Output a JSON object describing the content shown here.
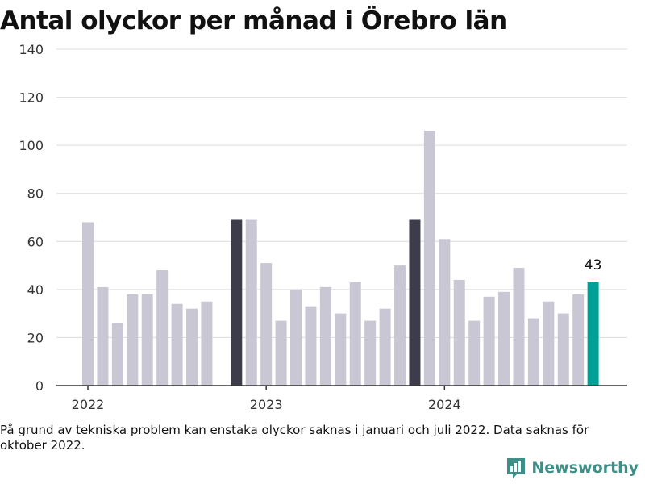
{
  "chart_data": {
    "type": "bar",
    "title": "Antal olyckor per månad i Örebro län",
    "xlabel": "",
    "ylabel": "",
    "ylim": [
      0,
      140
    ],
    "yticks": [
      0,
      20,
      40,
      60,
      80,
      100,
      120,
      140
    ],
    "year_labels": [
      {
        "label": "2022",
        "month_index": 0
      },
      {
        "label": "2023",
        "month_index": 12
      },
      {
        "label": "2024",
        "month_index": 24
      }
    ],
    "months": [
      "2022-01",
      "2022-02",
      "2022-03",
      "2022-04",
      "2022-05",
      "2022-06",
      "2022-07",
      "2022-08",
      "2022-09",
      "2022-10",
      "2022-11",
      "2022-12",
      "2023-01",
      "2023-02",
      "2023-03",
      "2023-04",
      "2023-05",
      "2023-06",
      "2023-07",
      "2023-08",
      "2023-09",
      "2023-10",
      "2023-11",
      "2023-12",
      "2024-01",
      "2024-02",
      "2024-03",
      "2024-04",
      "2024-05",
      "2024-06",
      "2024-07",
      "2024-08",
      "2024-09",
      "2024-10",
      "2024-11"
    ],
    "values": [
      68,
      41,
      26,
      38,
      38,
      48,
      34,
      32,
      35,
      null,
      69,
      69,
      51,
      27,
      40,
      33,
      41,
      30,
      43,
      27,
      32,
      50,
      69,
      106,
      61,
      44,
      27,
      37,
      39,
      49,
      28,
      35,
      30,
      38,
      43
    ],
    "highlighted_months": [
      "2022-11",
      "2023-11"
    ],
    "latest_month": "2024-11",
    "annotation": "43",
    "grid": true,
    "colors": {
      "default": "#c8c7d3",
      "highlight": "#3d3c4a",
      "latest": "#00a096",
      "grid": "#dcdcdc",
      "axis": "#333333"
    }
  },
  "footnote": "På grund av tekniska problem kan enstaka olyckor saknas i januari och juli 2022. Data saknas för oktober 2022.",
  "brand": {
    "name": "Newsworthy",
    "icon": "bar-chart-logo-icon",
    "color": "#3d8f87"
  }
}
